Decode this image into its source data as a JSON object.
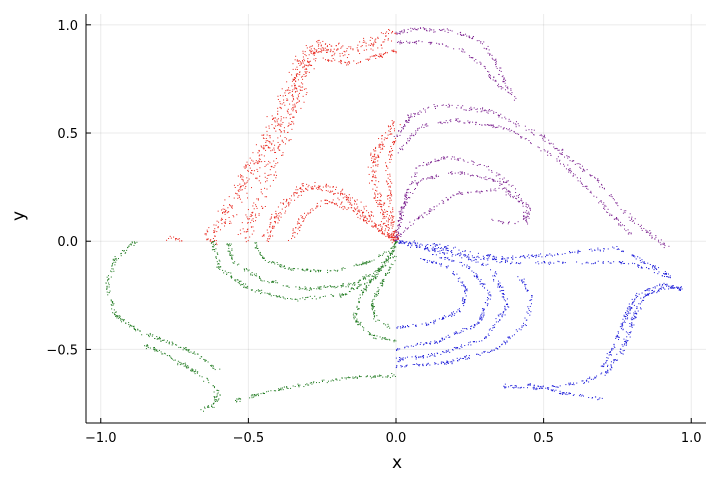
{
  "chart_data": {
    "type": "scatter",
    "title": "",
    "xlabel": "x",
    "ylabel": "y",
    "xlim": [
      -1.05,
      1.05
    ],
    "ylim": [
      -0.84,
      1.05
    ],
    "xticks": [
      -1.0,
      -0.5,
      0.0,
      0.5,
      1.0
    ],
    "xtick_labels": [
      "−1.0",
      "−0.5",
      "0.0",
      "0.5",
      "1.0"
    ],
    "yticks": [
      -0.5,
      0.0,
      0.5,
      1.0
    ],
    "ytick_labels": [
      "−0.5",
      "0.0",
      "0.5",
      "1.0"
    ],
    "grid": true,
    "legend": "none",
    "marker_size": 1,
    "series": [
      {
        "color": "#e8241a",
        "strands": [
          {
            "points": [
              [
                -0.64,
                0.0
              ],
              [
                -0.55,
                0.18
              ],
              [
                -0.46,
                0.4
              ],
              [
                -0.38,
                0.62
              ],
              [
                -0.33,
                0.8
              ],
              [
                -0.28,
                0.9
              ],
              [
                -0.2,
                0.88
              ],
              [
                -0.1,
                0.9
              ],
              [
                0.0,
                0.96
              ]
            ],
            "spread": 0.04,
            "count": 500
          },
          {
            "points": [
              [
                -0.52,
                0.0
              ],
              [
                -0.46,
                0.2
              ],
              [
                -0.4,
                0.42
              ],
              [
                -0.34,
                0.62
              ],
              [
                -0.3,
                0.82
              ],
              [
                -0.26,
                0.93
              ]
            ],
            "spread": 0.03,
            "count": 250
          },
          {
            "points": [
              [
                -0.25,
                0.84
              ],
              [
                -0.15,
                0.82
              ],
              [
                -0.05,
                0.86
              ],
              [
                0.0,
                0.88
              ]
            ],
            "spread": 0.012,
            "count": 70
          },
          {
            "points": [
              [
                -0.44,
                0.0
              ],
              [
                -0.4,
                0.12
              ],
              [
                -0.32,
                0.25
              ],
              [
                -0.22,
                0.25
              ],
              [
                -0.12,
                0.15
              ],
              [
                0.0,
                0.0
              ]
            ],
            "spread": 0.025,
            "count": 280
          },
          {
            "points": [
              [
                -0.36,
                0.0
              ],
              [
                -0.32,
                0.1
              ],
              [
                -0.24,
                0.19
              ],
              [
                -0.14,
                0.14
              ],
              [
                -0.06,
                0.06
              ],
              [
                0.0,
                0.0
              ]
            ],
            "spread": 0.015,
            "count": 140
          },
          {
            "points": [
              [
                0.0,
                0.0
              ],
              [
                -0.05,
                0.15
              ],
              [
                -0.08,
                0.3
              ],
              [
                -0.07,
                0.4
              ],
              [
                -0.03,
                0.5
              ],
              [
                0.0,
                0.55
              ]
            ],
            "spread": 0.02,
            "count": 200
          },
          {
            "points": [
              [
                0.0,
                0.0
              ],
              [
                -0.02,
                0.2
              ],
              [
                -0.03,
                0.35
              ],
              [
                -0.01,
                0.45
              ],
              [
                0.0,
                0.48
              ]
            ],
            "spread": 0.012,
            "count": 90
          },
          {
            "points": [
              [
                -0.8,
                0.0
              ],
              [
                -0.76,
                0.02
              ],
              [
                -0.72,
                0.0
              ]
            ],
            "spread": 0.008,
            "count": 14
          }
        ]
      },
      {
        "color": "#7a1f8e",
        "strands": [
          {
            "points": [
              [
                0.0,
                0.96
              ],
              [
                0.07,
                0.98
              ],
              [
                0.2,
                0.97
              ],
              [
                0.29,
                0.92
              ],
              [
                0.34,
                0.82
              ],
              [
                0.4,
                0.65
              ]
            ],
            "spread": 0.012,
            "count": 130
          },
          {
            "points": [
              [
                0.0,
                0.92
              ],
              [
                0.1,
                0.92
              ],
              [
                0.22,
                0.89
              ],
              [
                0.3,
                0.8
              ],
              [
                0.36,
                0.7
              ]
            ],
            "spread": 0.01,
            "count": 80
          },
          {
            "points": [
              [
                0.0,
                0.48
              ],
              [
                0.05,
                0.58
              ],
              [
                0.15,
                0.63
              ],
              [
                0.32,
                0.6
              ],
              [
                0.5,
                0.48
              ],
              [
                0.68,
                0.28
              ],
              [
                0.8,
                0.1
              ],
              [
                0.92,
                -0.03
              ]
            ],
            "spread": 0.012,
            "count": 260
          },
          {
            "points": [
              [
                0.0,
                0.4
              ],
              [
                0.08,
                0.53
              ],
              [
                0.2,
                0.56
              ],
              [
                0.38,
                0.52
              ],
              [
                0.55,
                0.38
              ],
              [
                0.68,
                0.2
              ],
              [
                0.8,
                0.02
              ]
            ],
            "spread": 0.01,
            "count": 200
          },
          {
            "points": [
              [
                0.0,
                0.0
              ],
              [
                0.03,
                0.2
              ],
              [
                0.08,
                0.35
              ],
              [
                0.18,
                0.39
              ],
              [
                0.3,
                0.35
              ],
              [
                0.4,
                0.25
              ],
              [
                0.45,
                0.12
              ],
              [
                0.4,
                0.08
              ],
              [
                0.32,
                0.1
              ]
            ],
            "spread": 0.01,
            "count": 170
          },
          {
            "points": [
              [
                0.0,
                0.0
              ],
              [
                0.02,
                0.15
              ],
              [
                0.08,
                0.28
              ],
              [
                0.2,
                0.32
              ],
              [
                0.34,
                0.28
              ],
              [
                0.42,
                0.18
              ],
              [
                0.44,
                0.1
              ]
            ],
            "spread": 0.009,
            "count": 140
          },
          {
            "points": [
              [
                0.0,
                0.0
              ],
              [
                0.05,
                0.08
              ],
              [
                0.2,
                0.22
              ],
              [
                0.35,
                0.24
              ],
              [
                0.45,
                0.16
              ],
              [
                0.44,
                0.08
              ]
            ],
            "spread": 0.009,
            "count": 120
          }
        ]
      },
      {
        "color": "#1b1bd9",
        "strands": [
          {
            "points": [
              [
                0.0,
                0.0
              ],
              [
                0.15,
                -0.02
              ],
              [
                0.35,
                -0.08
              ],
              [
                0.55,
                -0.06
              ],
              [
                0.75,
                -0.03
              ],
              [
                0.93,
                -0.16
              ]
            ],
            "spread": 0.01,
            "count": 190
          },
          {
            "points": [
              [
                0.0,
                0.0
              ],
              [
                0.18,
                -0.06
              ],
              [
                0.4,
                -0.1
              ],
              [
                0.6,
                -0.1
              ],
              [
                0.8,
                -0.1
              ],
              [
                0.93,
                -0.17
              ]
            ],
            "spread": 0.01,
            "count": 160
          },
          {
            "points": [
              [
                0.0,
                -0.55
              ],
              [
                0.15,
                -0.52
              ],
              [
                0.3,
                -0.45
              ],
              [
                0.38,
                -0.3
              ],
              [
                0.32,
                -0.12
              ],
              [
                0.18,
                -0.04
              ],
              [
                0.05,
                -0.02
              ]
            ],
            "spread": 0.012,
            "count": 210
          },
          {
            "points": [
              [
                0.0,
                -0.5
              ],
              [
                0.15,
                -0.46
              ],
              [
                0.28,
                -0.38
              ],
              [
                0.32,
                -0.25
              ],
              [
                0.25,
                -0.12
              ],
              [
                0.12,
                -0.06
              ]
            ],
            "spread": 0.01,
            "count": 170
          },
          {
            "points": [
              [
                0.0,
                -0.4
              ],
              [
                0.12,
                -0.38
              ],
              [
                0.22,
                -0.32
              ],
              [
                0.24,
                -0.22
              ],
              [
                0.18,
                -0.12
              ],
              [
                0.08,
                -0.08
              ]
            ],
            "spread": 0.009,
            "count": 130
          },
          {
            "points": [
              [
                0.0,
                -0.58
              ],
              [
                0.18,
                -0.56
              ],
              [
                0.34,
                -0.5
              ],
              [
                0.44,
                -0.38
              ],
              [
                0.46,
                -0.26
              ],
              [
                0.42,
                -0.16
              ]
            ],
            "spread": 0.01,
            "count": 150
          },
          {
            "points": [
              [
                0.36,
                -0.67
              ],
              [
                0.48,
                -0.68
              ],
              [
                0.6,
                -0.66
              ],
              [
                0.7,
                -0.62
              ],
              [
                0.77,
                -0.5
              ],
              [
                0.8,
                -0.37
              ],
              [
                0.84,
                -0.25
              ],
              [
                0.92,
                -0.21
              ],
              [
                0.98,
                -0.22
              ]
            ],
            "spread": 0.012,
            "count": 220
          },
          {
            "points": [
              [
                0.44,
                -0.66
              ],
              [
                0.56,
                -0.7
              ],
              [
                0.66,
                -0.72
              ],
              [
                0.7,
                -0.73
              ]
            ],
            "spread": 0.008,
            "count": 60
          },
          {
            "points": [
              [
                0.7,
                -0.58
              ],
              [
                0.74,
                -0.48
              ],
              [
                0.78,
                -0.34
              ],
              [
                0.82,
                -0.24
              ],
              [
                0.9,
                -0.2
              ],
              [
                0.97,
                -0.22
              ]
            ],
            "spread": 0.01,
            "count": 150
          }
        ]
      },
      {
        "color": "#1f7a1f",
        "strands": [
          {
            "points": [
              [
                -0.88,
                0.0
              ],
              [
                -0.95,
                -0.08
              ],
              [
                -0.98,
                -0.2
              ],
              [
                -0.95,
                -0.34
              ],
              [
                -0.87,
                -0.42
              ],
              [
                -0.78,
                -0.46
              ],
              [
                -0.68,
                -0.52
              ],
              [
                -0.6,
                -0.6
              ]
            ],
            "spread": 0.01,
            "count": 200
          },
          {
            "points": [
              [
                -0.85,
                -0.48
              ],
              [
                -0.76,
                -0.54
              ],
              [
                -0.66,
                -0.62
              ],
              [
                -0.6,
                -0.7
              ],
              [
                -0.62,
                -0.76
              ],
              [
                -0.66,
                -0.78
              ]
            ],
            "spread": 0.012,
            "count": 120
          },
          {
            "points": [
              [
                -0.57,
                0.0
              ],
              [
                -0.55,
                -0.1
              ],
              [
                -0.45,
                -0.18
              ],
              [
                -0.3,
                -0.22
              ],
              [
                -0.15,
                -0.2
              ],
              [
                -0.04,
                -0.12
              ],
              [
                0.0,
                0.0
              ]
            ],
            "spread": 0.01,
            "count": 200
          },
          {
            "points": [
              [
                -0.62,
                0.0
              ],
              [
                -0.6,
                -0.12
              ],
              [
                -0.5,
                -0.22
              ],
              [
                -0.35,
                -0.27
              ],
              [
                -0.18,
                -0.25
              ],
              [
                -0.06,
                -0.16
              ]
            ],
            "spread": 0.01,
            "count": 170
          },
          {
            "points": [
              [
                -0.48,
                0.0
              ],
              [
                -0.45,
                -0.08
              ],
              [
                -0.36,
                -0.13
              ],
              [
                -0.22,
                -0.14
              ],
              [
                -0.1,
                -0.1
              ],
              [
                -0.02,
                -0.04
              ]
            ],
            "spread": 0.009,
            "count": 130
          },
          {
            "points": [
              [
                0.0,
                -0.02
              ],
              [
                -0.05,
                -0.12
              ],
              [
                -0.12,
                -0.25
              ],
              [
                -0.14,
                -0.36
              ],
              [
                -0.08,
                -0.44
              ],
              [
                0.0,
                -0.46
              ]
            ],
            "spread": 0.01,
            "count": 140
          },
          {
            "points": [
              [
                0.0,
                -0.06
              ],
              [
                -0.04,
                -0.18
              ],
              [
                -0.08,
                -0.28
              ],
              [
                -0.07,
                -0.36
              ],
              [
                -0.02,
                -0.4
              ]
            ],
            "spread": 0.008,
            "count": 90
          },
          {
            "points": [
              [
                -0.55,
                -0.74
              ],
              [
                -0.45,
                -0.7
              ],
              [
                -0.3,
                -0.66
              ],
              [
                -0.15,
                -0.63
              ],
              [
                0.0,
                -0.62
              ]
            ],
            "spread": 0.01,
            "count": 130
          }
        ]
      }
    ]
  }
}
